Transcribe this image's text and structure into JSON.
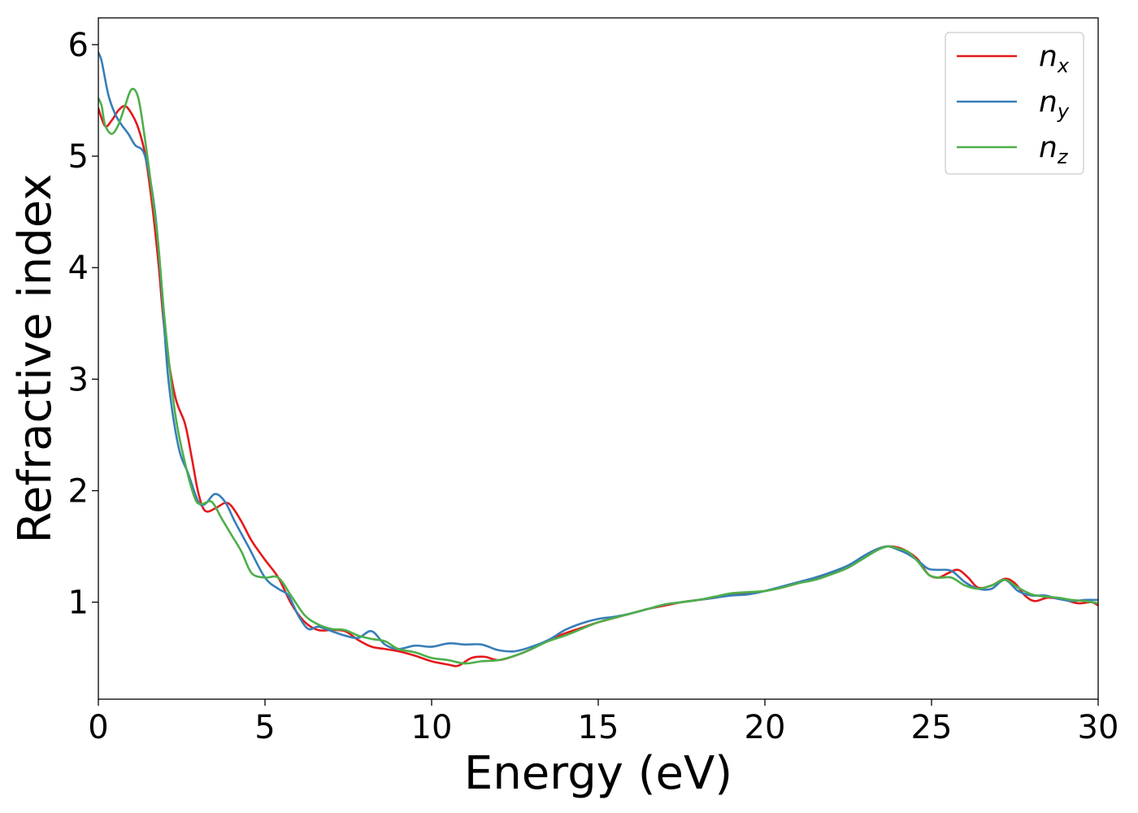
{
  "chart_data": {
    "type": "line",
    "xlabel": "Energy (eV)",
    "ylabel": "Refractive index",
    "xlim": [
      0,
      30
    ],
    "ylim": [
      0.13,
      6.24
    ],
    "xticks": [
      0,
      5,
      10,
      15,
      20,
      25,
      30
    ],
    "yticks": [
      1,
      2,
      3,
      4,
      5,
      6
    ],
    "grid": false,
    "legend_position": "top-right",
    "series": [
      {
        "name": "n_x",
        "label_base": "n",
        "label_sub": "x",
        "color": "#e41a1c",
        "x": [
          0,
          0.2,
          0.4,
          0.6,
          0.8,
          1.0,
          1.2,
          1.4,
          1.6,
          1.8,
          2.0,
          2.3,
          2.6,
          2.8,
          3.0,
          3.2,
          3.5,
          3.8,
          4.0,
          4.3,
          4.6,
          5.0,
          5.4,
          5.8,
          6.2,
          6.6,
          7.0,
          7.4,
          7.8,
          8.2,
          8.6,
          9.0,
          9.5,
          10.0,
          10.5,
          10.8,
          11.2,
          11.6,
          12.0,
          12.5,
          13.0,
          13.5,
          14.0,
          14.5,
          15.0,
          15.5,
          16.0,
          16.5,
          17.0,
          17.5,
          18.0,
          18.5,
          19.0,
          19.5,
          20.0,
          20.5,
          21.0,
          21.5,
          22.0,
          22.5,
          23.0,
          23.4,
          23.7,
          24.0,
          24.3,
          24.6,
          24.9,
          25.2,
          25.5,
          25.8,
          26.1,
          26.4,
          26.8,
          27.2,
          27.5,
          27.8,
          28.1,
          28.5,
          29.0,
          29.4,
          29.8,
          30.0
        ],
        "y": [
          5.43,
          5.27,
          5.32,
          5.41,
          5.45,
          5.38,
          5.25,
          5.02,
          4.6,
          4.05,
          3.4,
          2.85,
          2.6,
          2.3,
          1.98,
          1.82,
          1.84,
          1.89,
          1.86,
          1.72,
          1.55,
          1.38,
          1.22,
          0.98,
          0.82,
          0.75,
          0.75,
          0.74,
          0.66,
          0.6,
          0.58,
          0.56,
          0.52,
          0.47,
          0.44,
          0.43,
          0.5,
          0.51,
          0.48,
          0.52,
          0.58,
          0.66,
          0.72,
          0.77,
          0.82,
          0.86,
          0.9,
          0.94,
          0.97,
          1.0,
          1.02,
          1.04,
          1.07,
          1.08,
          1.1,
          1.13,
          1.17,
          1.21,
          1.26,
          1.32,
          1.42,
          1.48,
          1.5,
          1.49,
          1.45,
          1.38,
          1.25,
          1.22,
          1.26,
          1.29,
          1.22,
          1.13,
          1.15,
          1.21,
          1.17,
          1.06,
          1.01,
          1.04,
          1.02,
          0.99,
          1.0,
          0.97
        ]
      },
      {
        "name": "n_y",
        "label_base": "n",
        "label_sub": "y",
        "color": "#377eb8",
        "x": [
          0,
          0.1,
          0.3,
          0.5,
          0.7,
          0.9,
          1.1,
          1.4,
          1.7,
          1.9,
          2.1,
          2.4,
          2.7,
          3.0,
          3.2,
          3.5,
          3.8,
          4.1,
          4.5,
          5.0,
          5.4,
          5.7,
          6.0,
          6.3,
          6.6,
          7.0,
          7.4,
          7.8,
          8.2,
          8.6,
          9.0,
          9.5,
          10.0,
          10.5,
          11.0,
          11.5,
          12.0,
          12.5,
          13.0,
          13.5,
          14.0,
          14.5,
          15.0,
          15.5,
          16.0,
          16.5,
          17.0,
          17.5,
          18.0,
          18.5,
          19.0,
          19.5,
          20.0,
          20.5,
          21.0,
          21.5,
          22.0,
          22.5,
          23.0,
          23.4,
          23.7,
          24.0,
          24.3,
          24.6,
          24.9,
          25.2,
          25.6,
          26.0,
          26.4,
          26.8,
          27.2,
          27.6,
          28.0,
          28.4,
          28.8,
          29.2,
          29.6,
          30.0
        ],
        "y": [
          5.93,
          5.85,
          5.55,
          5.38,
          5.28,
          5.2,
          5.1,
          5.0,
          4.5,
          3.8,
          3.0,
          2.4,
          2.15,
          1.9,
          1.88,
          1.97,
          1.9,
          1.72,
          1.5,
          1.22,
          1.12,
          1.06,
          0.88,
          0.76,
          0.78,
          0.74,
          0.7,
          0.68,
          0.74,
          0.62,
          0.58,
          0.61,
          0.6,
          0.63,
          0.62,
          0.62,
          0.57,
          0.56,
          0.6,
          0.66,
          0.75,
          0.81,
          0.85,
          0.87,
          0.9,
          0.94,
          0.98,
          1.0,
          1.02,
          1.04,
          1.06,
          1.07,
          1.1,
          1.14,
          1.18,
          1.22,
          1.27,
          1.33,
          1.42,
          1.48,
          1.5,
          1.47,
          1.43,
          1.37,
          1.3,
          1.29,
          1.28,
          1.18,
          1.12,
          1.12,
          1.2,
          1.1,
          1.06,
          1.06,
          1.03,
          1.01,
          1.02,
          1.02
        ]
      },
      {
        "name": "n_z",
        "label_base": "n",
        "label_sub": "z",
        "color": "#4daf4a",
        "x": [
          0,
          0.1,
          0.2,
          0.4,
          0.6,
          0.8,
          1.0,
          1.2,
          1.4,
          1.6,
          1.8,
          2.0,
          2.3,
          2.6,
          2.9,
          3.1,
          3.4,
          3.7,
          4.0,
          4.3,
          4.6,
          5.0,
          5.4,
          5.8,
          6.2,
          6.6,
          7.0,
          7.4,
          7.8,
          8.2,
          8.6,
          9.0,
          9.5,
          10.0,
          10.5,
          11.0,
          11.5,
          12.0,
          12.5,
          13.0,
          13.5,
          14.0,
          14.5,
          15.0,
          15.5,
          16.0,
          16.5,
          17.0,
          17.5,
          18.0,
          18.5,
          19.0,
          19.5,
          20.0,
          20.5,
          21.0,
          21.5,
          22.0,
          22.5,
          23.0,
          23.4,
          23.7,
          24.0,
          24.3,
          24.6,
          24.9,
          25.2,
          25.6,
          26.0,
          26.4,
          26.8,
          27.2,
          27.6,
          28.0,
          28.4,
          28.8,
          29.2,
          29.6,
          30.0
        ],
        "y": [
          5.52,
          5.45,
          5.28,
          5.2,
          5.28,
          5.45,
          5.6,
          5.52,
          5.15,
          4.7,
          4.2,
          3.5,
          2.7,
          2.25,
          1.93,
          1.88,
          1.9,
          1.75,
          1.6,
          1.45,
          1.26,
          1.22,
          1.22,
          1.05,
          0.88,
          0.8,
          0.76,
          0.75,
          0.7,
          0.67,
          0.65,
          0.58,
          0.55,
          0.5,
          0.48,
          0.45,
          0.47,
          0.48,
          0.52,
          0.58,
          0.65,
          0.7,
          0.76,
          0.82,
          0.86,
          0.9,
          0.94,
          0.98,
          1.0,
          1.02,
          1.05,
          1.08,
          1.09,
          1.1,
          1.13,
          1.17,
          1.2,
          1.25,
          1.31,
          1.4,
          1.47,
          1.5,
          1.48,
          1.45,
          1.36,
          1.25,
          1.22,
          1.22,
          1.15,
          1.12,
          1.15,
          1.2,
          1.13,
          1.07,
          1.05,
          1.04,
          1.02,
          1.01,
          0.99
        ]
      }
    ]
  }
}
